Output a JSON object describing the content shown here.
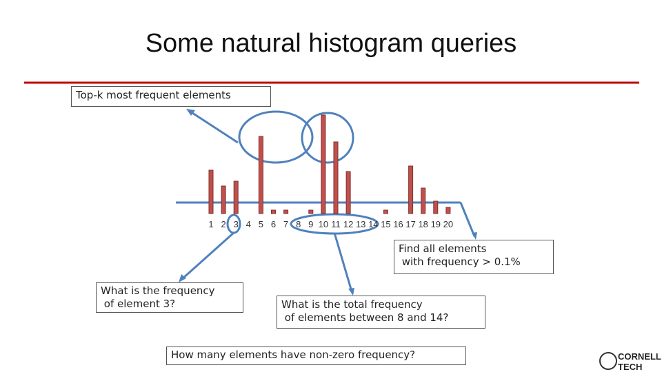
{
  "title": "Some natural histogram queries",
  "chart_data": {
    "type": "bar",
    "categories": [
      "1",
      "2",
      "3",
      "4",
      "5",
      "6",
      "7",
      "8",
      "9",
      "10",
      "11",
      "12",
      "13",
      "14",
      "15",
      "16",
      "17",
      "18",
      "19",
      "20"
    ],
    "values": [
      63,
      40,
      47,
      0,
      112,
      5,
      5,
      0,
      5,
      143,
      104,
      61,
      0,
      0,
      5,
      0,
      69,
      37,
      18,
      9
    ],
    "color": "#c0504d"
  },
  "annotations": {
    "top_k": [
      "Top-k most frequent elements"
    ],
    "find_all": [
      "Find all elements",
      " with frequency > 0.1%"
    ],
    "point": [
      "What is the frequency",
      " of element 3?"
    ],
    "range": [
      "What is the total frequency",
      " of elements between 8 and 14?"
    ],
    "distinct": [
      "How many elements have non-zero frequency?"
    ]
  },
  "logo": [
    "CORNELL",
    "TECH"
  ]
}
